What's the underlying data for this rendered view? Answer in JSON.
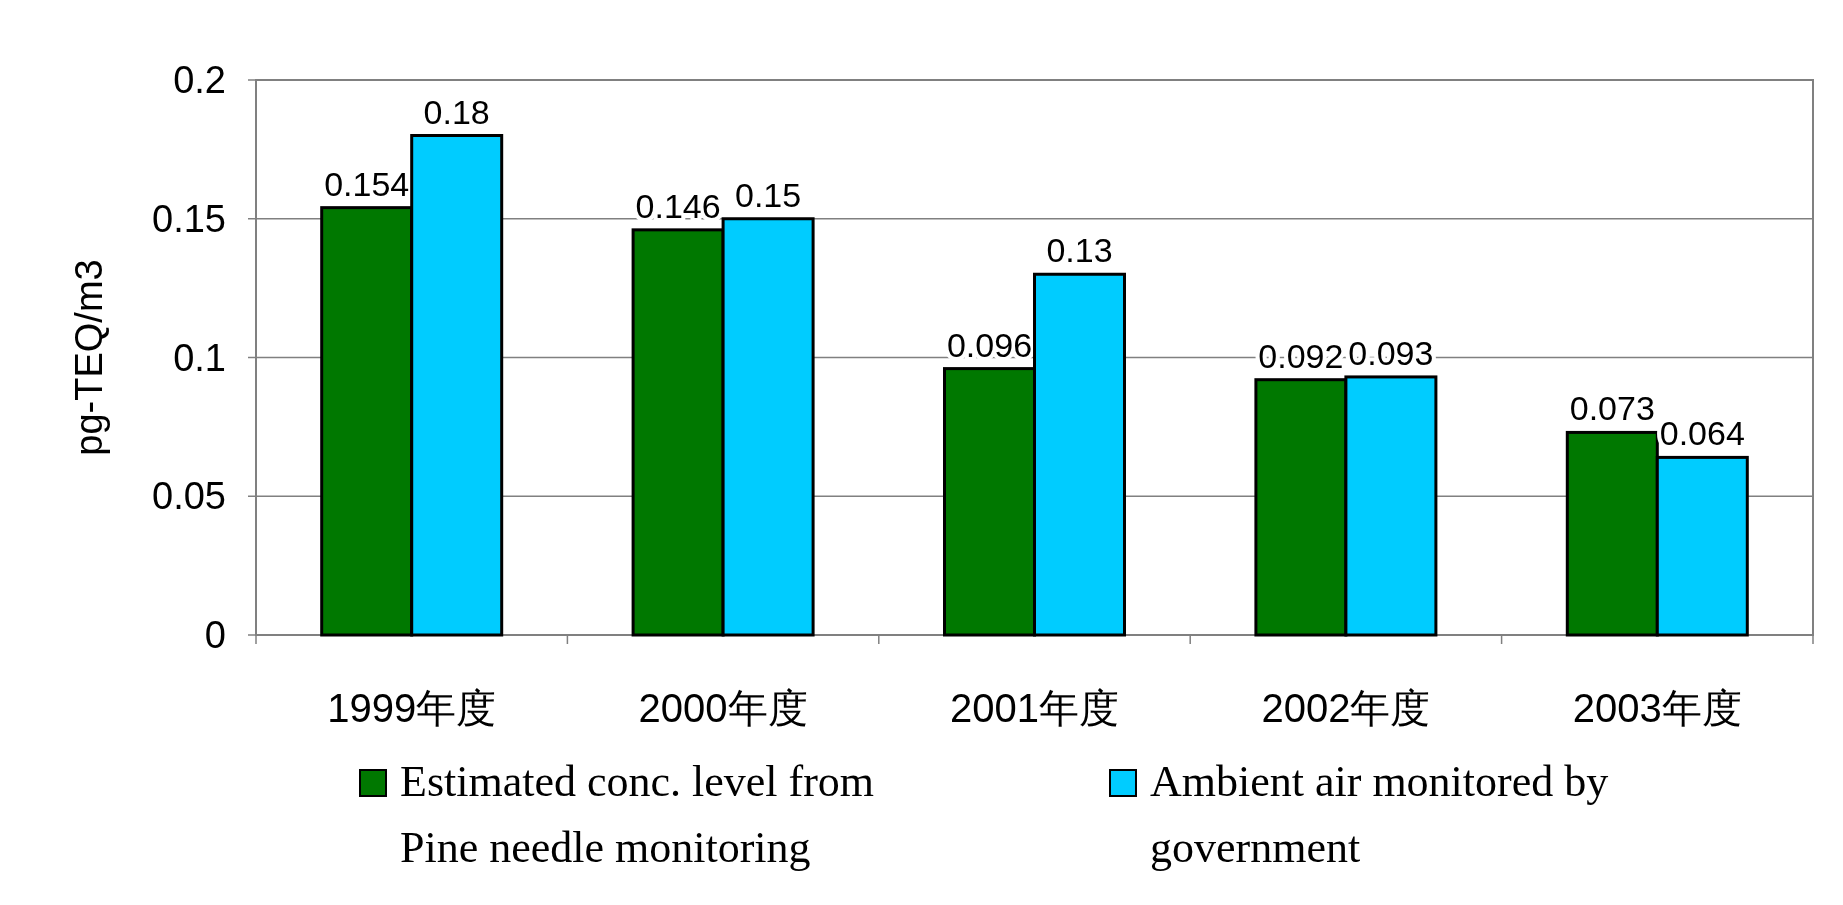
{
  "chart_data": {
    "type": "bar",
    "ylabel": "pg-TEQ/m3",
    "categories": [
      "1999年度",
      "2000年度",
      "2001年度",
      "2002年度",
      "2003年度"
    ],
    "series": [
      {
        "name": "Estimated conc. level from Pine needle monitoring",
        "color": "#007800",
        "values": [
          0.154,
          0.146,
          0.096,
          0.092,
          0.073
        ]
      },
      {
        "name": "Ambient air monitored by government",
        "color": "#00ccff",
        "values": [
          0.18,
          0.15,
          0.13,
          0.093,
          0.064
        ]
      }
    ],
    "ylim": [
      0,
      0.2
    ],
    "yticks": [
      0,
      0.05,
      0.1,
      0.15,
      0.2
    ],
    "grid": "y",
    "data_labels": true,
    "legend": "bottom"
  }
}
